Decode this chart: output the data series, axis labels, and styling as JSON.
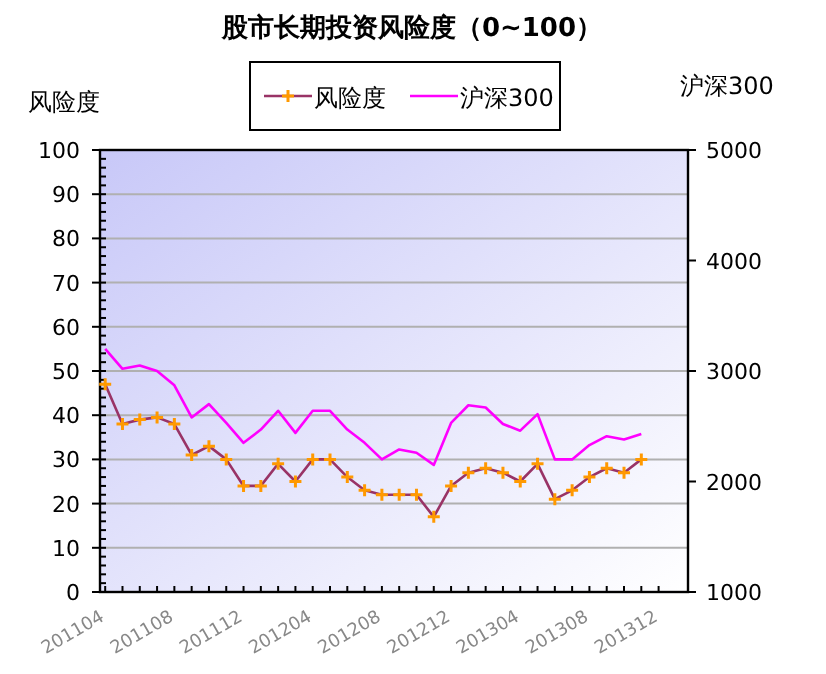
{
  "chart_data": {
    "type": "line",
    "title": "股市长期投资风险度（0~100）",
    "ylabel": "风险度",
    "y2label": "沪深300",
    "categories": [
      "201104",
      null,
      null,
      null,
      "201108",
      null,
      null,
      null,
      "201112",
      null,
      null,
      null,
      "201204",
      null,
      null,
      null,
      "201208",
      null,
      null,
      null,
      "201212",
      null,
      null,
      null,
      "201304",
      null,
      null,
      null,
      "201308",
      null,
      null,
      null,
      "201312"
    ],
    "series": [
      {
        "name": "风险度",
        "color": "#993366",
        "marker": "cross",
        "values": [
          47,
          38,
          39,
          39.5,
          38,
          31,
          33,
          30,
          24,
          24,
          29,
          25,
          30,
          30,
          26,
          23,
          22,
          22,
          22,
          17,
          24,
          27,
          28,
          27,
          25,
          29,
          21,
          23,
          26,
          28,
          27,
          30,
          null
        ]
      },
      {
        "name": "沪深300",
        "color": "#ff00ff",
        "axis": "y2",
        "values": [
          3200,
          3020,
          3050,
          3000,
          2870,
          2580,
          2700,
          2530,
          2350,
          2470,
          2640,
          2440,
          2640,
          2640,
          2470,
          2350,
          2200,
          2290,
          2260,
          2150,
          2530,
          2690,
          2670,
          2520,
          2460,
          2610,
          2200,
          2200,
          2330,
          2410,
          2380,
          2430,
          null
        ]
      }
    ],
    "ylim": [
      0,
      100
    ],
    "yticks": [
      0,
      10,
      20,
      30,
      40,
      50,
      60,
      70,
      80,
      90,
      100
    ],
    "y2lim": [
      1000,
      5000
    ],
    "y2ticks": [
      1000,
      2000,
      3000,
      4000,
      5000
    ],
    "grid": "y",
    "legend": "top"
  }
}
